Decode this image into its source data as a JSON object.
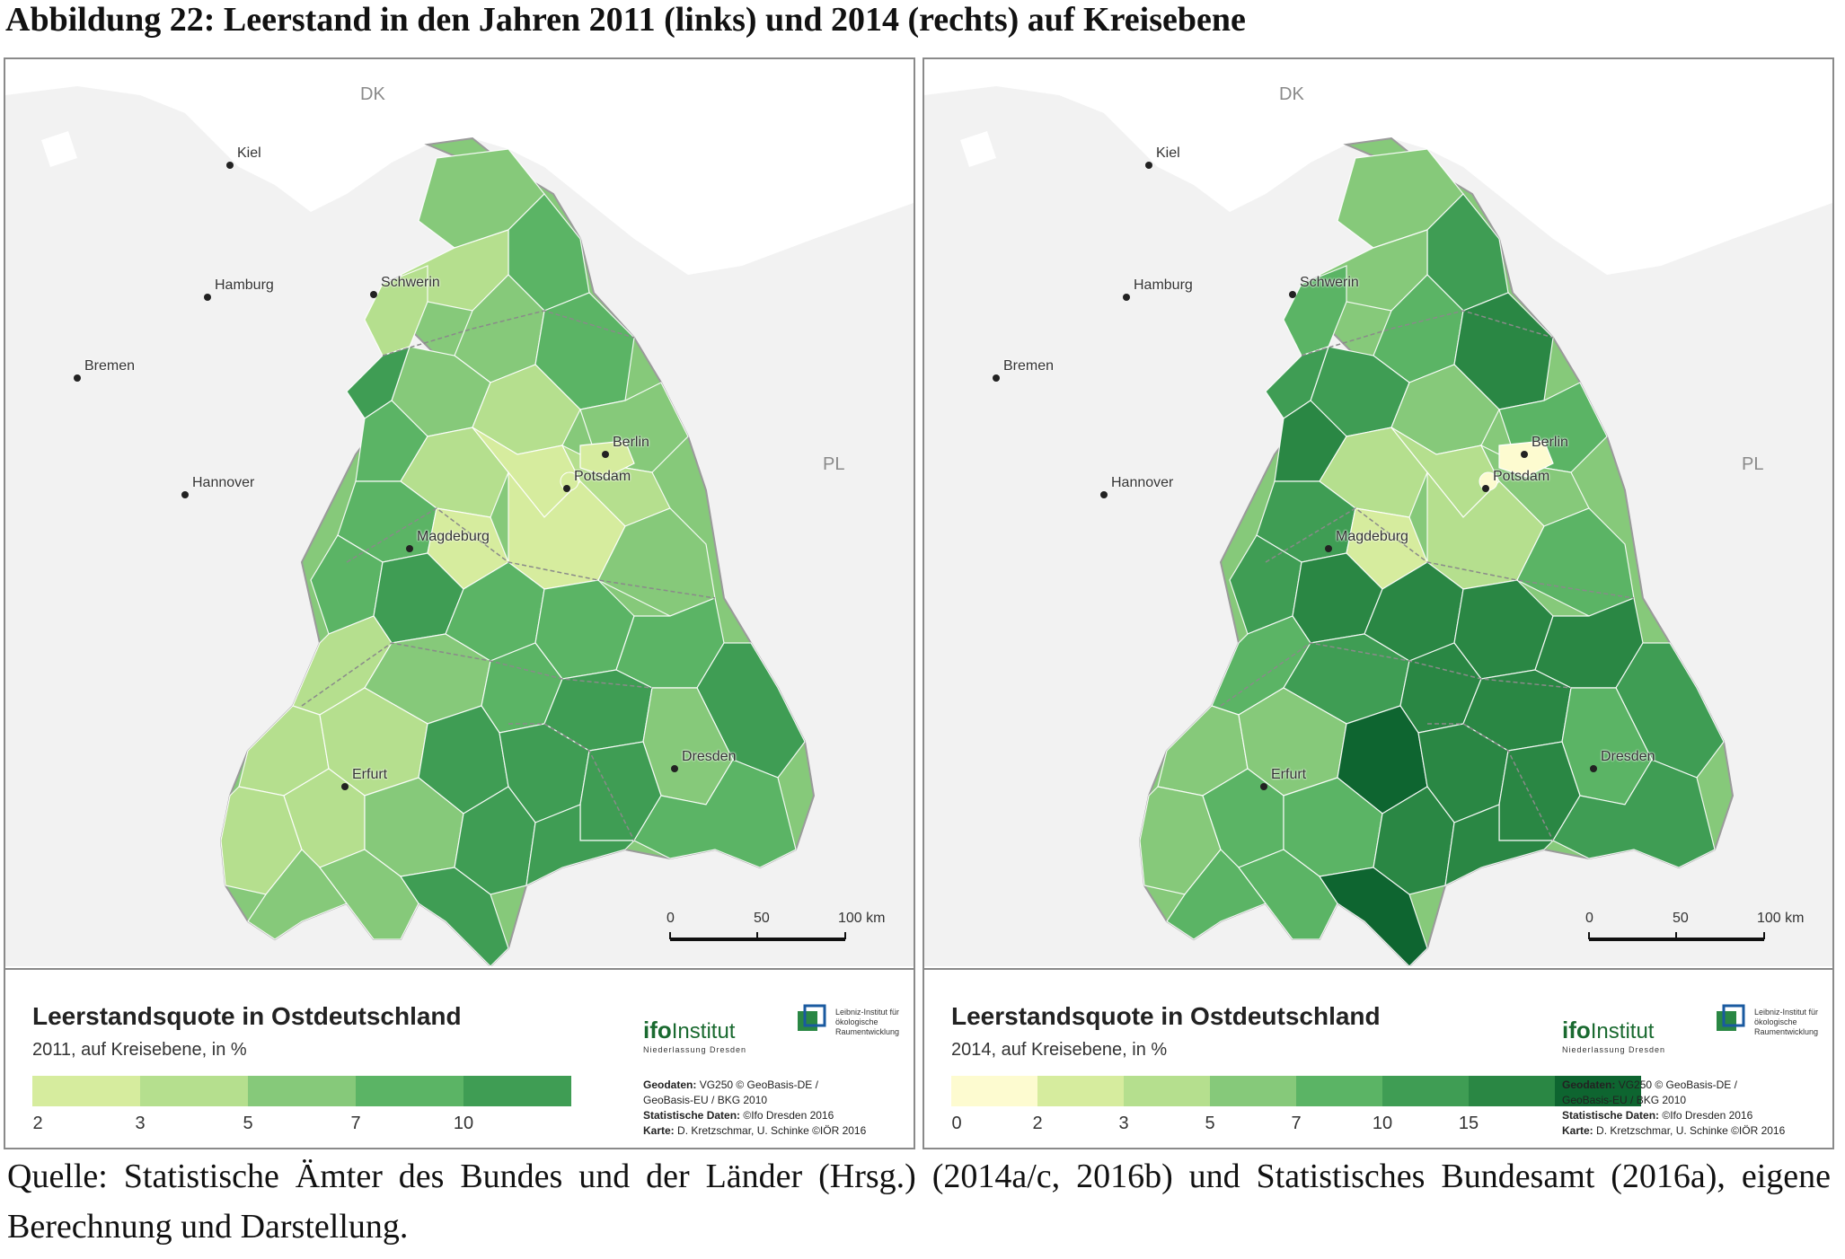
{
  "figure_title": "Abbildung 22: Leerstand in den Jahren 2011 (links) und 2014 (rechts) auf Kreisebene",
  "colors": {
    "water": "#ffffff",
    "land_outside": "#f2f2f2",
    "border": "#9a9a9a",
    "palette": [
      "#fdfbd0",
      "#d6ec9e",
      "#b5df8e",
      "#86c97a",
      "#5bb465",
      "#3f9d54",
      "#2a8744",
      "#0e6530"
    ]
  },
  "maps": [
    {
      "year": "2011",
      "labels": {
        "countries": [
          "DK",
          "PL"
        ],
        "cities": [
          "Kiel",
          "Hamburg",
          "Schwerin",
          "Bremen",
          "Hannover",
          "Berlin",
          "Potsdam",
          "Magdeburg",
          "Erfurt",
          "Dresden"
        ]
      },
      "scale": {
        "ticks": [
          "0",
          "50",
          "100 km"
        ]
      },
      "legend": {
        "title": "Leerstandsquote in Ostdeutschland",
        "subtitle": "2011, auf Kreisebene, in %",
        "classes": [
          "#d6ec9e",
          "#b5df8e",
          "#86c97a",
          "#5bb465",
          "#3f9d54"
        ],
        "ticks": [
          "2",
          "3",
          "5",
          "7",
          "10"
        ]
      },
      "logos": {
        "ifo_main": "ifo",
        "ifo_inst": "Institut",
        "ifo_sub": "Niederlassung Dresden",
        "ioer_text": "Leibniz-Institut für ökologische Raumentwicklung"
      },
      "credits": {
        "geo_label": "Geodaten:",
        "geo_1": "VG250 © GeoBasis-DE /",
        "geo_2": "GeoBasis-EU / BKG 2010",
        "stat_label": "Statistische Daten:",
        "stat": "©Ifo Dresden 2016",
        "karte_label": "Karte:",
        "karte": "D. Kretzschmar, U. Schinke ©IÖR 2016"
      }
    },
    {
      "year": "2014",
      "labels": {
        "countries": [
          "DK",
          "PL"
        ],
        "cities": [
          "Kiel",
          "Hamburg",
          "Schwerin",
          "Bremen",
          "Hannover",
          "Berlin",
          "Potsdam",
          "Magdeburg",
          "Erfurt",
          "Dresden"
        ]
      },
      "scale": {
        "ticks": [
          "0",
          "50",
          "100 km"
        ]
      },
      "legend": {
        "title": "Leerstandsquote in Ostdeutschland",
        "subtitle": "2014, auf Kreisebene, in %",
        "classes": [
          "#fdfbd0",
          "#d6ec9e",
          "#b5df8e",
          "#86c97a",
          "#5bb465",
          "#3f9d54",
          "#2a8744",
          "#0e6530"
        ],
        "ticks": [
          "0",
          "2",
          "3",
          "5",
          "7",
          "10",
          "15"
        ]
      },
      "logos": {
        "ifo_main": "ifo",
        "ifo_inst": "Institut",
        "ifo_sub": "Niederlassung Dresden",
        "ioer_text": "Leibniz-Institut für ökologische Raumentwicklung"
      },
      "credits": {
        "geo_label": "Geodaten:",
        "geo_1": "VG250 © GeoBasis-DE /",
        "geo_2": "GeoBasis-EU / BKG 2010",
        "stat_label": "Statistische Daten:",
        "stat": "©Ifo Dresden 2016",
        "karte_label": "Karte:",
        "karte": "D. Kretzschmar, U. Schinke ©IÖR 2016"
      }
    }
  ],
  "source_text": "Quelle: Statistische Ämter des Bundes und der Länder (Hrsg.) (2014a/c, 2016b) und Statistisches Bundesamt (2016a), eigene Berechnung und Darstellung."
}
